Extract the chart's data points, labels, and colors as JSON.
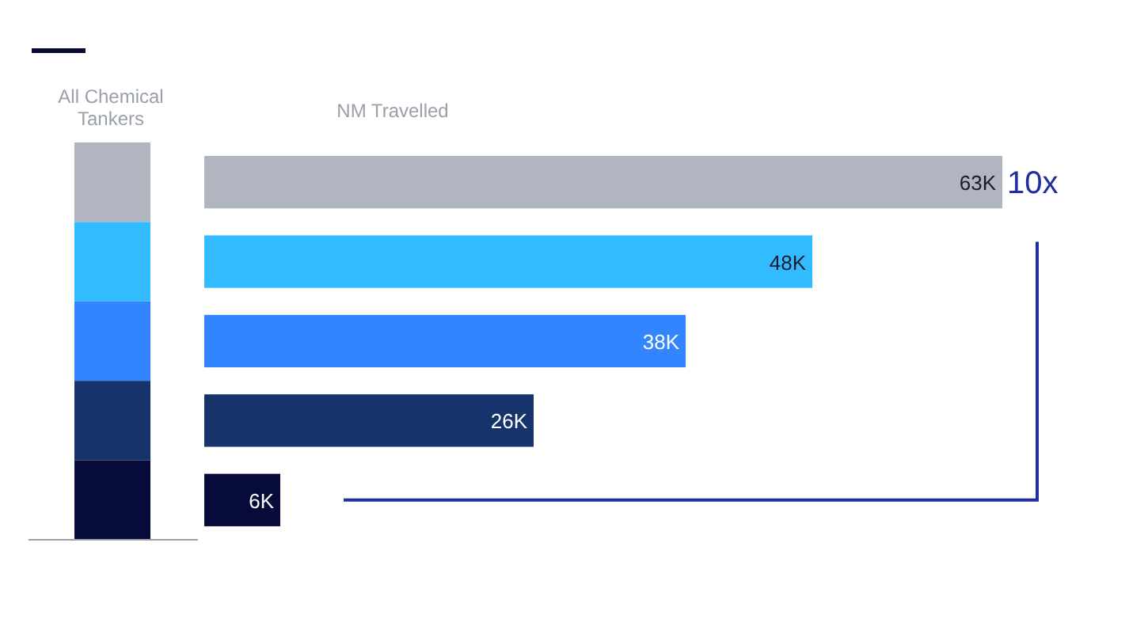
{
  "chart_data": {
    "type": "bar",
    "orientation": "horizontal",
    "xlabel": "NM Travelled",
    "categories": [
      null,
      null,
      null,
      null,
      null
    ],
    "values": [
      63,
      48,
      38,
      26,
      6
    ],
    "colors": [
      "#b1b5bf",
      "#33bbff",
      "#3385ff",
      "#16336b",
      "#060b3a"
    ],
    "value_labels": [
      "63K",
      "48K",
      "38K",
      "26K",
      "6K"
    ],
    "annotations": [
      "All Chemical Tankers",
      "10x"
    ]
  }
}
